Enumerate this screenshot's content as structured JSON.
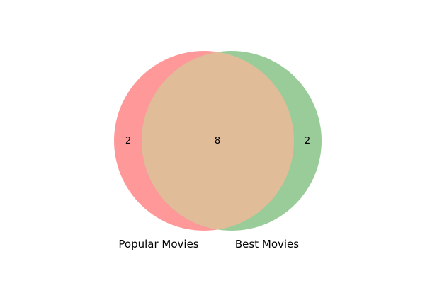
{
  "sets": {
    "a": {
      "label": "Popular Movies",
      "only_count": "2",
      "color": "#ff9999"
    },
    "b": {
      "label": "Best Movies",
      "only_count": "2",
      "color": "#99cc99"
    }
  },
  "intersection": {
    "count": "8",
    "color": "#e0bc98"
  }
}
